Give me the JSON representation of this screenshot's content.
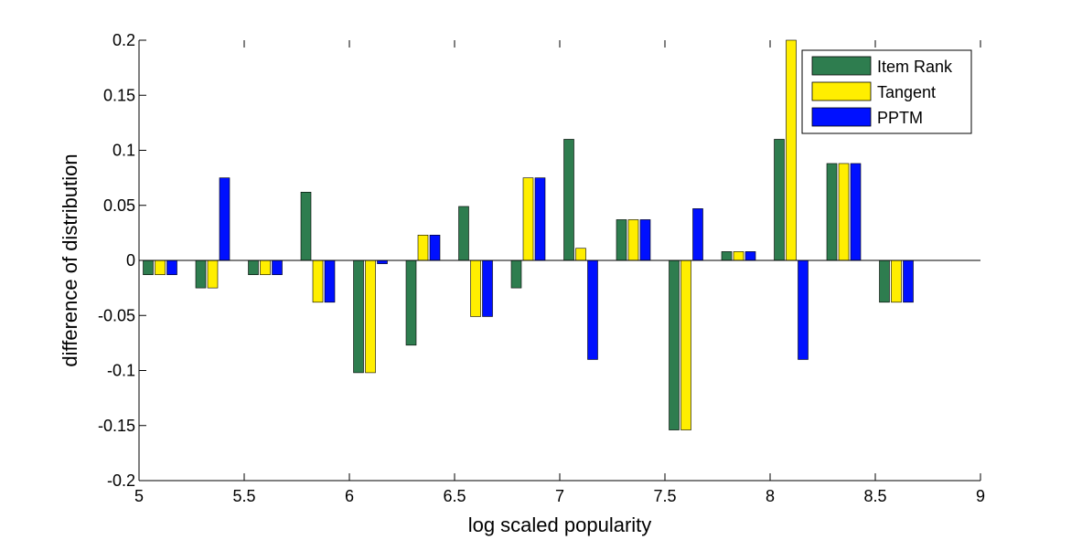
{
  "chart_data": {
    "type": "bar",
    "title": "",
    "xlabel": "log scaled popularity",
    "ylabel": "difference of distribution",
    "xlim": [
      5,
      9
    ],
    "ylim": [
      -0.2,
      0.2
    ],
    "xticks": [
      5,
      5.5,
      6,
      6.5,
      7,
      7.5,
      8,
      8.5,
      9
    ],
    "xtick_labels": [
      "5",
      "5.5",
      "6",
      "6.5",
      "7",
      "7.5",
      "8",
      "8.5",
      "9"
    ],
    "yticks": [
      -0.2,
      -0.15,
      -0.1,
      -0.05,
      0,
      0.05,
      0.1,
      0.15,
      0.2
    ],
    "ytick_labels": [
      "-0.2",
      "-0.15",
      "-0.1",
      "-0.05",
      "0",
      "0.05",
      "0.1",
      "0.15",
      "0.2"
    ],
    "grid": false,
    "legend_position": "top-right",
    "x": [
      5.1,
      5.35,
      5.6,
      5.85,
      6.1,
      6.35,
      6.6,
      6.85,
      7.1,
      7.35,
      7.6,
      7.85,
      8.1,
      8.35,
      8.6
    ],
    "series": [
      {
        "name": "Item Rank",
        "color": "#2e7d4f",
        "values": [
          -0.013,
          -0.025,
          -0.013,
          0.062,
          -0.102,
          -0.077,
          0.049,
          -0.025,
          0.11,
          0.037,
          -0.154,
          0.008,
          0.11,
          0.088,
          -0.038
        ]
      },
      {
        "name": "Tangent",
        "color": "#ffee00",
        "values": [
          -0.013,
          -0.025,
          -0.013,
          -0.038,
          -0.102,
          0.023,
          -0.051,
          0.075,
          0.011,
          0.037,
          -0.154,
          0.008,
          0.2,
          0.088,
          -0.038
        ]
      },
      {
        "name": "PPTM",
        "color": "#0010ff",
        "values": [
          -0.013,
          0.075,
          -0.013,
          -0.038,
          -0.003,
          0.023,
          -0.051,
          0.075,
          -0.09,
          0.037,
          0.047,
          0.008,
          -0.09,
          0.088,
          -0.038
        ]
      }
    ]
  }
}
